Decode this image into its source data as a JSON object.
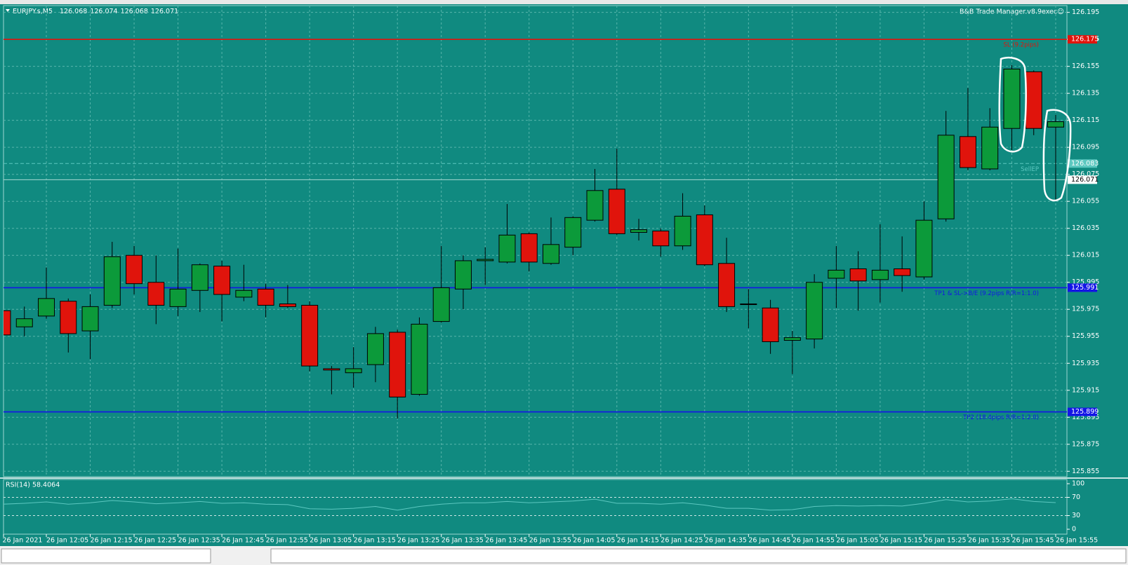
{
  "chart_data": {
    "type": "candlestick",
    "title": "EURJPY.s,M5",
    "quote": [
      126.068,
      126.074,
      126.068,
      126.071
    ],
    "tool": "B&B Trade Manager.v8.9exec☺",
    "categories": [
      "26 Jan 2021",
      null,
      "26 Jan 12:05",
      null,
      "26 Jan 12:15",
      null,
      "26 Jan 12:25",
      null,
      "26 Jan 12:35",
      null,
      "26 Jan 12:45",
      null,
      "26 Jan 12:55",
      null,
      "26 Jan 13:05",
      null,
      "26 Jan 13:15",
      null,
      "26 Jan 13:25",
      null,
      "26 Jan 13:35",
      null,
      "26 Jan 13:45",
      null,
      "26 Jan 13:55",
      null,
      "26 Jan 14:05",
      null,
      "26 Jan 14:15",
      null,
      "26 Jan 14:25",
      null,
      "26 Jan 14:35",
      null,
      "26 Jan 14:45",
      null,
      "26 Jan 14:55",
      null,
      "26 Jan 15:05",
      null,
      "26 Jan 15:15",
      null,
      "26 Jan 15:25",
      null,
      "26 Jan 15:35",
      null,
      "26 Jan 15:45",
      null,
      "26 Jan 15:55"
    ],
    "open": [
      125.974,
      125.962,
      125.97,
      125.981,
      125.959,
      125.978,
      126.015,
      125.995,
      125.977,
      125.989,
      126.007,
      125.984,
      125.99,
      125.979,
      125.978,
      125.931,
      125.928,
      125.934,
      125.958,
      125.912,
      125.966,
      125.99,
      126.011,
      126.01,
      126.031,
      126.009,
      126.021,
      126.041,
      126.064,
      126.032,
      126.033,
      126.022,
      126.045,
      126.009,
      125.979,
      125.976,
      125.952,
      125.953,
      125.998,
      126.005,
      125.997,
      126.005,
      125.999,
      126.042,
      126.103,
      126.079,
      126.109,
      126.151,
      126.11
    ],
    "high": [
      125.976,
      125.977,
      126.006,
      125.983,
      125.986,
      126.025,
      126.022,
      126.015,
      126.02,
      126.009,
      126.011,
      126.008,
      125.994,
      125.993,
      125.981,
      125.933,
      125.947,
      125.962,
      125.96,
      125.969,
      126.022,
      126.015,
      126.021,
      126.053,
      126.032,
      126.043,
      126.044,
      126.079,
      126.094,
      126.042,
      126.035,
      126.061,
      126.052,
      126.028,
      125.99,
      125.982,
      125.959,
      126.001,
      126.022,
      126.018,
      126.038,
      126.029,
      126.055,
      126.122,
      126.139,
      126.124,
      126.156,
      126.152,
      126.119
    ],
    "low": [
      125.942,
      125.955,
      125.968,
      125.943,
      125.938,
      125.976,
      125.986,
      125.964,
      125.97,
      125.973,
      125.966,
      125.981,
      125.969,
      125.976,
      125.929,
      125.912,
      125.917,
      125.921,
      125.894,
      125.911,
      125.965,
      125.975,
      125.993,
      126.009,
      126.003,
      126.008,
      126.015,
      126.04,
      126.03,
      126.026,
      126.014,
      126.019,
      126.007,
      125.973,
      125.961,
      125.942,
      125.927,
      125.946,
      125.976,
      125.974,
      125.98,
      125.988,
      125.997,
      126.04,
      126.078,
      126.078,
      126.093,
      126.104,
      126.056
    ],
    "close": [
      125.956,
      125.968,
      125.983,
      125.957,
      125.977,
      126.014,
      125.994,
      125.978,
      125.99,
      126.008,
      125.986,
      125.989,
      125.978,
      125.977,
      125.933,
      125.93,
      125.931,
      125.957,
      125.91,
      125.964,
      125.991,
      126.011,
      126.012,
      126.03,
      126.01,
      126.023,
      126.043,
      126.063,
      126.031,
      126.034,
      126.022,
      126.044,
      126.008,
      125.977,
      125.979,
      125.951,
      125.954,
      125.995,
      126.004,
      125.996,
      126.004,
      126.0,
      126.041,
      126.104,
      126.08,
      126.11,
      126.153,
      126.109,
      126.114
    ],
    "up_color": "#0c9a3a",
    "down_color": "#e0140c",
    "ylim": [
      125.851,
      126.2
    ],
    "yticks": [
      126.195,
      126.175,
      126.155,
      126.135,
      126.115,
      126.095,
      126.075,
      126.055,
      126.035,
      126.015,
      125.995,
      125.975,
      125.955,
      125.935,
      125.915,
      125.895,
      125.875,
      125.855
    ],
    "grid": true,
    "levels": [
      {
        "label": "SL (9.2pips)",
        "value": 126.175,
        "color": "#e0140c"
      },
      {
        "label": "TP1 & SL->B/E (9.2pips R/R=1:1.0)",
        "value": 125.991,
        "color": "#1414e6"
      },
      {
        "label": "TP2 (18.4pips R/R=1:2.0)",
        "value": 125.899,
        "color": "#1414e6"
      },
      {
        "label": "SellEP",
        "value": 126.083,
        "color": "#5cc8c0"
      },
      {
        "value": 126.071,
        "color": "#ffffff"
      }
    ],
    "rsi": {
      "label": "RSI(14) 58.4064",
      "color": "#5cc8c0",
      "values": [
        55,
        57,
        60,
        55,
        58,
        63,
        60,
        56,
        58,
        61,
        57,
        58,
        55,
        54,
        45,
        44,
        46,
        50,
        42,
        50,
        55,
        58,
        58,
        61,
        58,
        60,
        62,
        66,
        57,
        57,
        55,
        58,
        53,
        46,
        46,
        42,
        43,
        50,
        52,
        51,
        52,
        51,
        57,
        65,
        60,
        62,
        67,
        61,
        58.4064
      ],
      "ylim": [
        0,
        100
      ],
      "yticks": [
        100,
        70,
        30,
        0
      ],
      "levels": [
        70,
        30
      ]
    }
  }
}
